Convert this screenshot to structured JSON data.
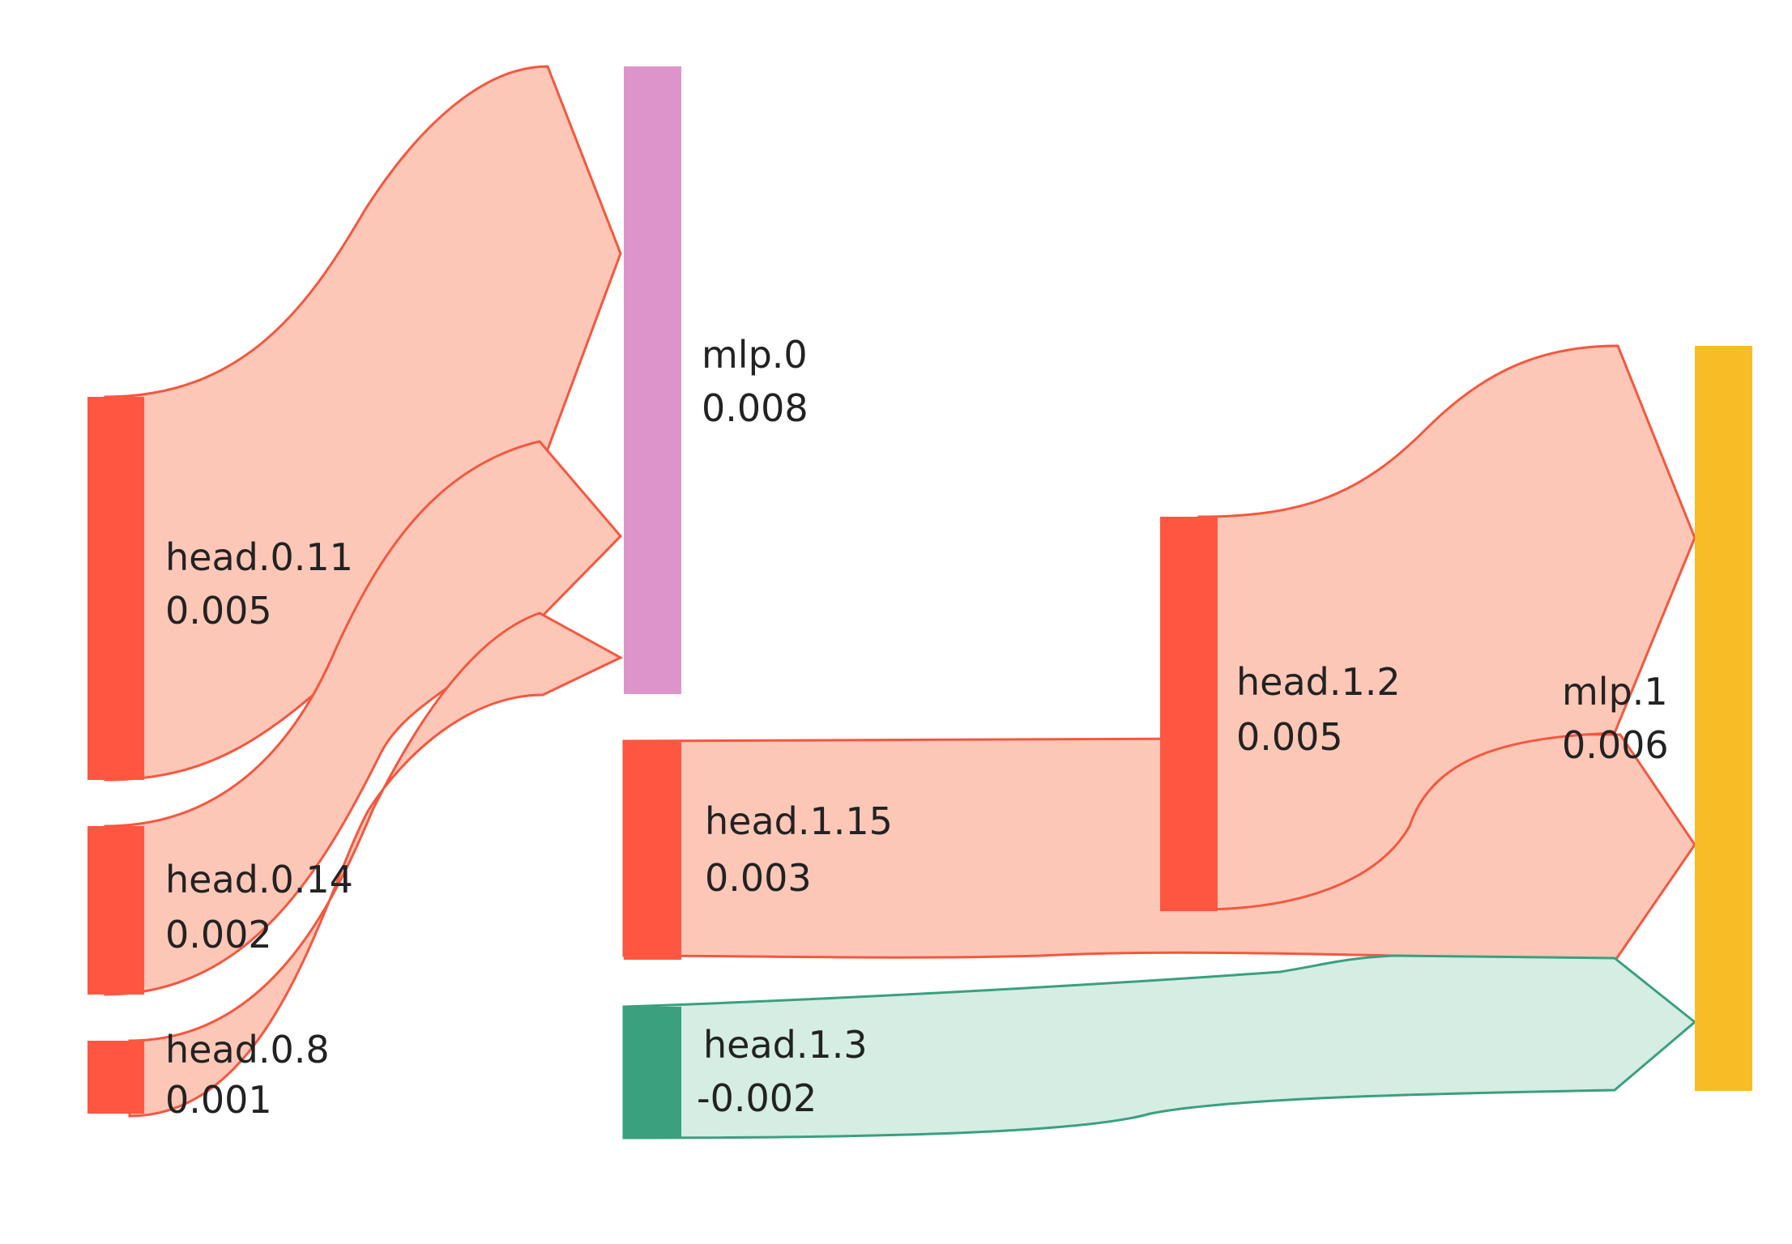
{
  "colors": {
    "positive_node": "#FF5641",
    "positive_flow_fill": "#FDC7B7",
    "positive_flow_stroke": "#F4573F",
    "negative_node": "#3BA07D",
    "negative_flow_fill": "#D5EDE2",
    "negative_flow_stroke": "#3AA07F",
    "mlp0": "#DD94CB",
    "mlp1": "#F8BD26"
  },
  "nodes": {
    "mlp0": {
      "name": "mlp.0",
      "value": "0.008"
    },
    "mlp1": {
      "name": "mlp.1",
      "value": "0.006"
    },
    "head_0_11": {
      "name": "head.0.11",
      "value": "0.005"
    },
    "head_0_14": {
      "name": "head.0.14",
      "value": "0.002"
    },
    "head_0_8": {
      "name": "head.0.8",
      "value": "0.001"
    },
    "head_1_2": {
      "name": "head.1.2",
      "value": "0.005"
    },
    "head_1_15": {
      "name": "head.1.15",
      "value": "0.003"
    },
    "head_1_3": {
      "name": "head.1.3",
      "value": "-0.002"
    }
  },
  "links": [
    {
      "source": "head.0.11",
      "target": "mlp.0"
    },
    {
      "source": "head.0.14",
      "target": "mlp.0"
    },
    {
      "source": "head.0.8",
      "target": "mlp.0"
    },
    {
      "source": "head.1.2",
      "target": "mlp.1"
    },
    {
      "source": "head.1.15",
      "target": "mlp.1"
    },
    {
      "source": "head.1.3",
      "target": "mlp.1"
    }
  ]
}
